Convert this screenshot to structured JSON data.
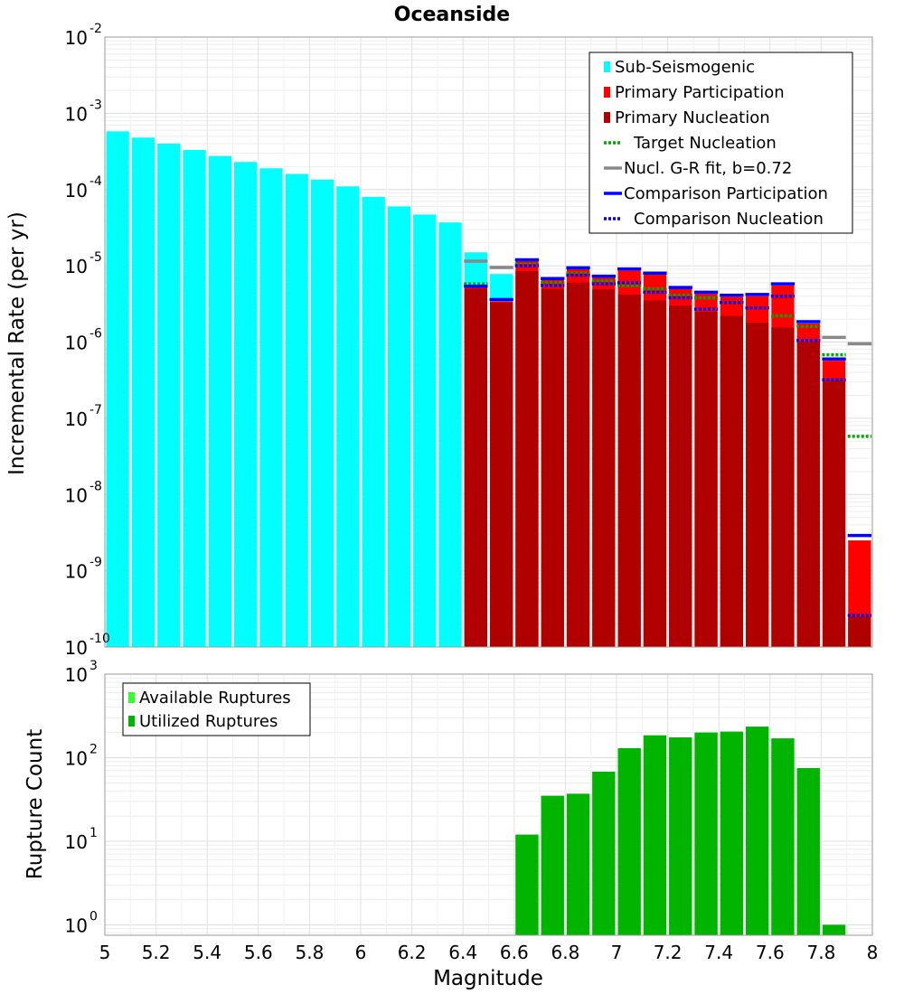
{
  "chart_data": [
    {
      "type": "bar",
      "title": "Oceanside",
      "ylabel": "Incremental Rate (per yr)",
      "xlabel": "",
      "xlim": [
        5,
        8
      ],
      "yscale": "log",
      "ylim": [
        1e-10,
        0.01
      ],
      "y_ticks": [
        {
          "base": "10",
          "exp": "-10"
        },
        {
          "base": "10",
          "exp": "-9"
        },
        {
          "base": "10",
          "exp": "-8"
        },
        {
          "base": "10",
          "exp": "-7"
        },
        {
          "base": "10",
          "exp": "-6"
        },
        {
          "base": "10",
          "exp": "-5"
        },
        {
          "base": "10",
          "exp": "-4"
        },
        {
          "base": "10",
          "exp": "-3"
        },
        {
          "base": "10",
          "exp": "-2"
        }
      ],
      "bin_width": 0.1,
      "x": [
        5.05,
        5.15,
        5.25,
        5.35,
        5.45,
        5.55,
        5.65,
        5.75,
        5.85,
        5.95,
        6.05,
        6.15,
        6.25,
        6.35,
        6.45,
        6.55,
        6.65,
        6.75,
        6.85,
        6.95,
        7.05,
        7.15,
        7.25,
        7.35,
        7.45,
        7.55,
        7.65,
        7.75,
        7.85,
        7.95
      ],
      "series": [
        {
          "name": "Sub-Seismogenic",
          "color": "#00ffff",
          "style": "bar",
          "values": [
            0.00058,
            0.00048,
            0.0004,
            0.00033,
            0.000275,
            0.00023,
            0.00019,
            0.00016,
            0.000135,
            0.00011,
            8e-05,
            6e-05,
            4.7e-05,
            3.7e-05,
            1.5e-05,
            7.8e-06,
            1.1e-05,
            null,
            null,
            null,
            null,
            null,
            null,
            null,
            null,
            null,
            null,
            null,
            null,
            null
          ]
        },
        {
          "name": "Primary Participation",
          "color": "#ff0000",
          "style": "bar",
          "values": [
            null,
            null,
            null,
            null,
            null,
            null,
            null,
            null,
            null,
            null,
            null,
            null,
            null,
            null,
            5.2e-06,
            3.4e-06,
            1.15e-05,
            6.5e-06,
            9e-06,
            7e-06,
            8.7e-06,
            7.7e-06,
            5e-06,
            4.3e-06,
            3.9e-06,
            4e-06,
            5.5e-06,
            1.75e-06,
            5.7e-07,
            2.5e-09
          ]
        },
        {
          "name": "Primary Nucleation",
          "color": "#b00000",
          "style": "bar",
          "values": [
            null,
            null,
            null,
            null,
            null,
            null,
            null,
            null,
            null,
            null,
            null,
            null,
            null,
            null,
            5e-06,
            3.3e-06,
            8.5e-06,
            5e-06,
            6e-06,
            4.9e-06,
            4.2e-06,
            3.5e-06,
            3e-06,
            2.5e-06,
            2.2e-06,
            1.8e-06,
            1.55e-06,
            1e-06,
            3.1e-07,
            2.5e-10
          ]
        },
        {
          "name": "Target Nucleation",
          "color": "#00aa00",
          "style": "dotted",
          "values": [
            null,
            null,
            null,
            null,
            null,
            null,
            null,
            null,
            null,
            null,
            null,
            null,
            null,
            null,
            5.8e-06,
            null,
            1.05e-05,
            6e-06,
            8e-06,
            6.3e-06,
            5.5e-06,
            5e-06,
            4.1e-06,
            3.8e-06,
            3.3e-06,
            2.8e-06,
            2.2e-06,
            1.6e-06,
            6.8e-07,
            5.8e-08
          ]
        },
        {
          "name": "Nucl. G-R fit, b=0.72",
          "color": "#888888",
          "style": "solid",
          "values": [
            null,
            null,
            null,
            null,
            null,
            null,
            null,
            null,
            null,
            null,
            null,
            null,
            null,
            null,
            1.15e-05,
            9.5e-06,
            null,
            null,
            null,
            null,
            null,
            null,
            null,
            null,
            null,
            null,
            null,
            null,
            1.15e-06,
            9.5e-07
          ]
        },
        {
          "name": "Comparison Participation",
          "color": "#0000ff",
          "style": "solid",
          "values": [
            null,
            null,
            null,
            null,
            null,
            null,
            null,
            null,
            null,
            null,
            null,
            null,
            null,
            null,
            5.4e-06,
            3.6e-06,
            1.2e-05,
            6.8e-06,
            9.4e-06,
            7.3e-06,
            9.1e-06,
            8e-06,
            5.2e-06,
            4.5e-06,
            4.1e-06,
            4.2e-06,
            5.8e-06,
            1.85e-06,
            6e-07,
            2.9e-09
          ]
        },
        {
          "name": "Comparison Nucleation",
          "color": "#0000ff",
          "style": "dotted",
          "values": [
            null,
            null,
            null,
            null,
            null,
            null,
            null,
            null,
            null,
            null,
            null,
            null,
            null,
            null,
            null,
            null,
            1e-05,
            5.5e-06,
            7.5e-06,
            5.8e-06,
            6e-06,
            4.5e-06,
            3.8e-06,
            2.7e-06,
            3.3e-06,
            2.8e-06,
            4e-06,
            1.05e-06,
            3.2e-07,
            2.6e-10
          ]
        }
      ],
      "legend": "top-right",
      "grid": true
    },
    {
      "type": "bar",
      "title": "",
      "ylabel": "Rupture Count",
      "xlabel": "Magnitude",
      "xlim": [
        5,
        8
      ],
      "x_ticks": [
        "5",
        "5.2",
        "5.4",
        "5.6",
        "5.8",
        "6",
        "6.2",
        "6.4",
        "6.6",
        "6.8",
        "7",
        "7.2",
        "7.4",
        "7.6",
        "7.8",
        "8"
      ],
      "yscale": "log",
      "ylim": [
        0.75,
        1000
      ],
      "y_ticks": [
        {
          "base": "10",
          "exp": "0"
        },
        {
          "base": "10",
          "exp": "1"
        },
        {
          "base": "10",
          "exp": "2"
        },
        {
          "base": "10",
          "exp": "3"
        }
      ],
      "bin_width": 0.1,
      "x": [
        6.65,
        6.75,
        6.85,
        6.95,
        7.05,
        7.15,
        7.25,
        7.35,
        7.45,
        7.55,
        7.65,
        7.75,
        7.85
      ],
      "series": [
        {
          "name": "Available Ruptures",
          "color": "#33ff33",
          "style": "bar",
          "values": [
            12,
            35,
            37,
            68,
            130,
            185,
            175,
            200,
            205,
            235,
            170,
            75,
            1
          ]
        },
        {
          "name": "Utilized Ruptures",
          "color": "#00b400",
          "style": "bar",
          "values": [
            12,
            35,
            37,
            68,
            130,
            185,
            175,
            200,
            205,
            235,
            170,
            75,
            1
          ]
        }
      ],
      "legend": "top-left",
      "grid": true
    }
  ]
}
